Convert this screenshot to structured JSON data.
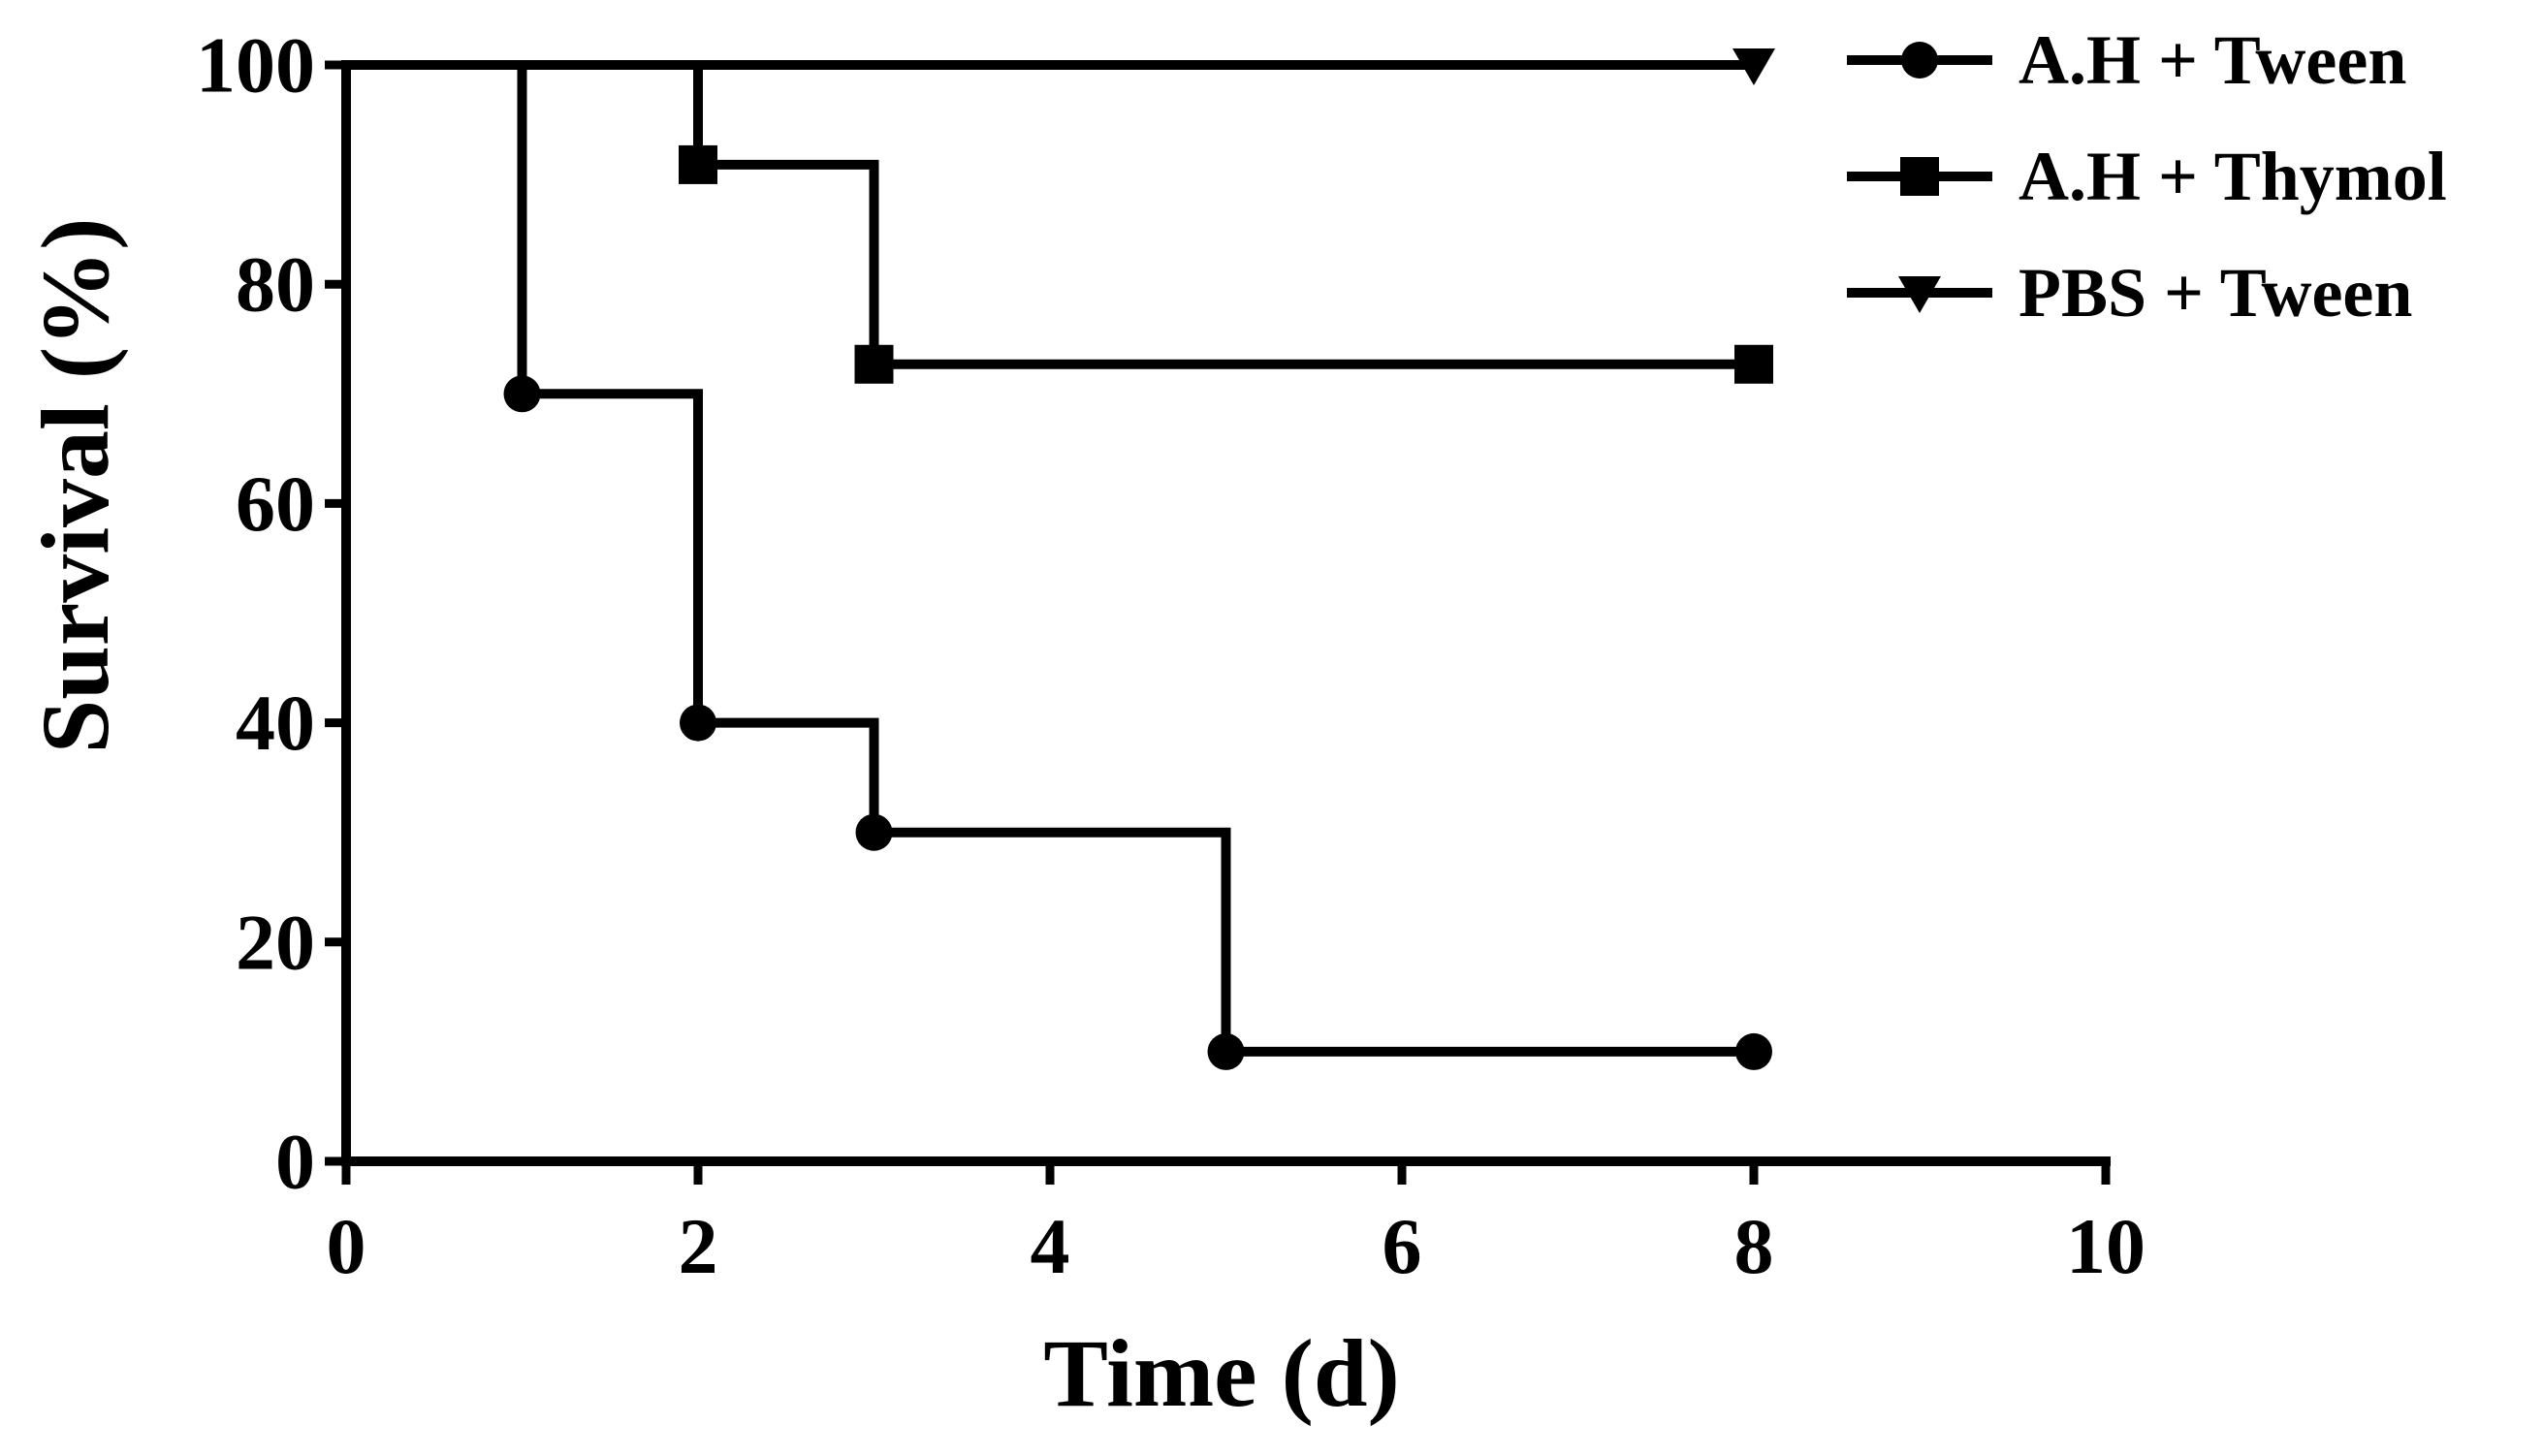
{
  "chart_data": {
    "type": "line",
    "step": true,
    "xlabel": "Time (d)",
    "ylabel": "Survival (%)",
    "xlim": [
      0,
      10
    ],
    "ylim": [
      0,
      100
    ],
    "xticks": [
      0,
      2,
      4,
      6,
      8,
      10
    ],
    "yticks": [
      0,
      20,
      40,
      60,
      80,
      100
    ],
    "grid": false,
    "legend_position": "top-right",
    "color": "#000000",
    "series": [
      {
        "name": "A.H + Tween",
        "marker": "circle",
        "x": [
          0,
          1,
          2,
          3,
          5,
          8
        ],
        "y": [
          100,
          70,
          40,
          30,
          10,
          10
        ],
        "marker_x": [
          1,
          2,
          3,
          5,
          8
        ],
        "marker_y": [
          70,
          40,
          30,
          10,
          10
        ]
      },
      {
        "name": "A.H + Thymol",
        "marker": "square",
        "x": [
          0,
          2,
          3,
          8
        ],
        "y": [
          100,
          90.9,
          72.7,
          72.7
        ],
        "marker_x": [
          2,
          3,
          8
        ],
        "marker_y": [
          90.9,
          72.7,
          72.7
        ]
      },
      {
        "name": "PBS + Tween",
        "marker": "triangle-down",
        "x": [
          0,
          8
        ],
        "y": [
          100,
          100
        ],
        "marker_x": [
          8
        ],
        "marker_y": [
          100
        ]
      }
    ]
  }
}
